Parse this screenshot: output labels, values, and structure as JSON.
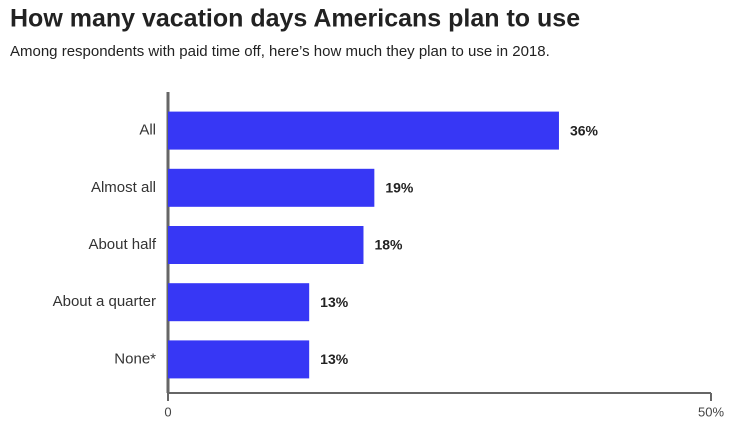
{
  "chart_data": {
    "type": "bar",
    "orientation": "horizontal",
    "title": "How many vacation days Americans plan to use",
    "subtitle": "Among respondents with paid time off, here’s how much they plan to use in 2018.",
    "categories": [
      "All",
      "Almost all",
      "About half",
      "About a quarter",
      "None*"
    ],
    "values": [
      36,
      19,
      18,
      13,
      13
    ],
    "value_labels": [
      "36%",
      "19%",
      "18%",
      "13%",
      "13%"
    ],
    "color": "#3737f5",
    "xlim": [
      0,
      50
    ],
    "xticks": [
      0,
      {
        "value": 50,
        "label": "50%"
      }
    ]
  }
}
